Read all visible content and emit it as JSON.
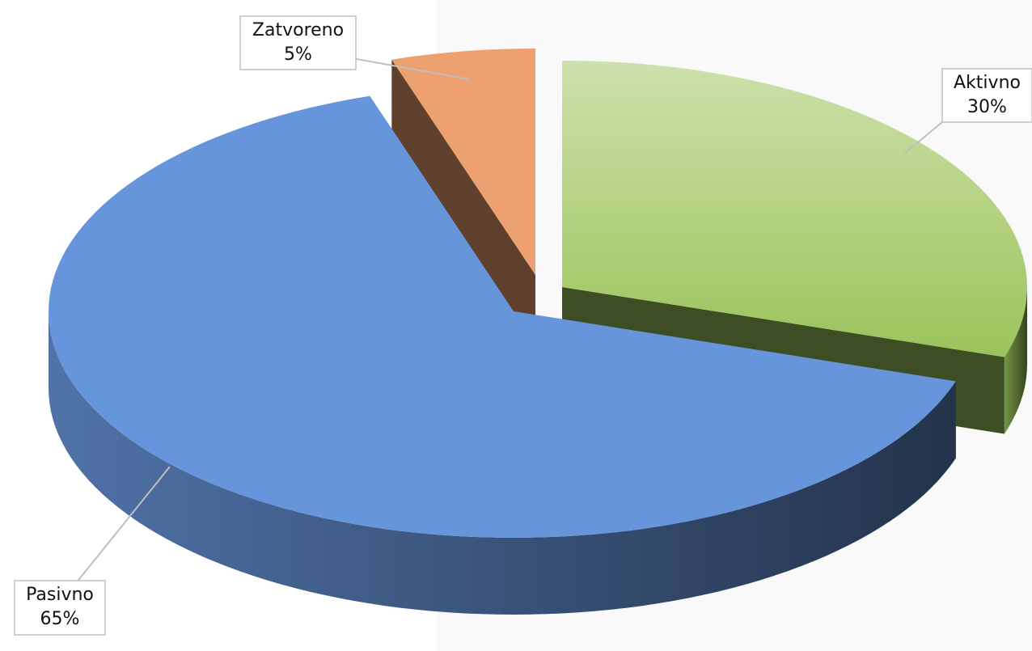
{
  "chart_data": {
    "type": "pie",
    "categories": [
      "Aktivno",
      "Pasivno",
      "Zatvoreno"
    ],
    "values": [
      30,
      65,
      5
    ],
    "value_labels": [
      "30%",
      "65%",
      "5%"
    ],
    "colors": [
      "#9bc35a",
      "#6795dc",
      "#eda070"
    ]
  }
}
